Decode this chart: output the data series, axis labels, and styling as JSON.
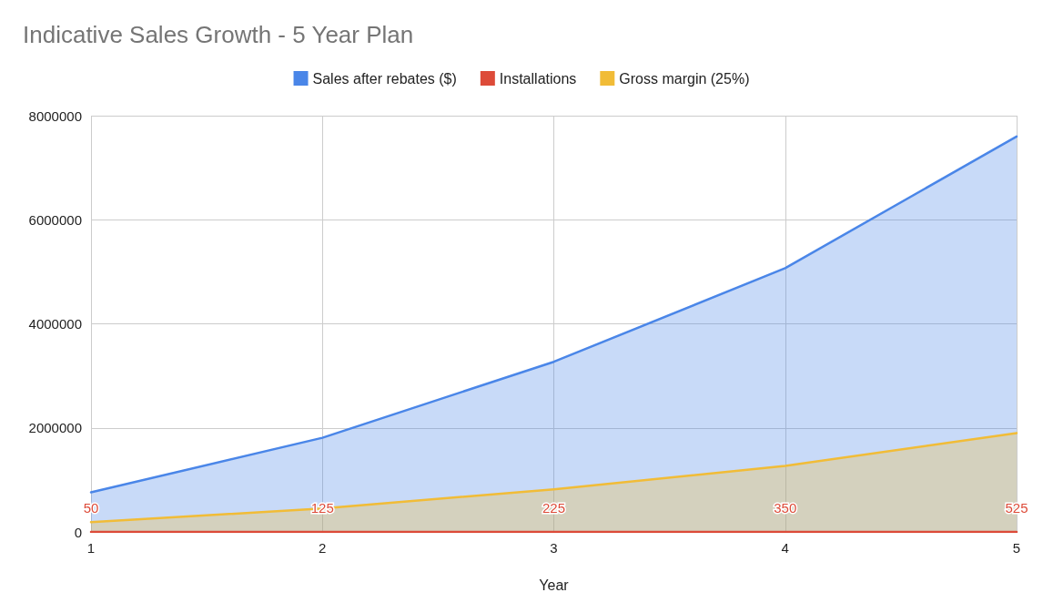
{
  "chart_data": {
    "type": "area",
    "title": "Indicative Sales Growth - 5 Year Plan",
    "xlabel": "Year",
    "x": [
      1,
      2,
      3,
      4,
      5
    ],
    "series": [
      {
        "name": "Sales after rebates ($)",
        "color": "#4a86e8",
        "values": [
          760000,
          1810000,
          3270000,
          5070000,
          7600000
        ]
      },
      {
        "name": "Installations",
        "color": "#dd4b39",
        "values": [
          50,
          125,
          225,
          350,
          525
        ],
        "value_labels": [
          "50",
          "125",
          "225",
          "350",
          "525"
        ]
      },
      {
        "name": "Gross margin (25%)",
        "color": "#f1bc37",
        "values": [
          190000,
          450000,
          820000,
          1270000,
          1900000
        ]
      }
    ],
    "xlim": [
      1,
      5
    ],
    "xticks": [
      1,
      2,
      3,
      4,
      5
    ],
    "ylim": [
      0,
      8000000
    ],
    "yticks": [
      0,
      2000000,
      4000000,
      6000000,
      8000000
    ],
    "grid": true,
    "legend": "top",
    "marker": "none",
    "line_style": "solid"
  }
}
